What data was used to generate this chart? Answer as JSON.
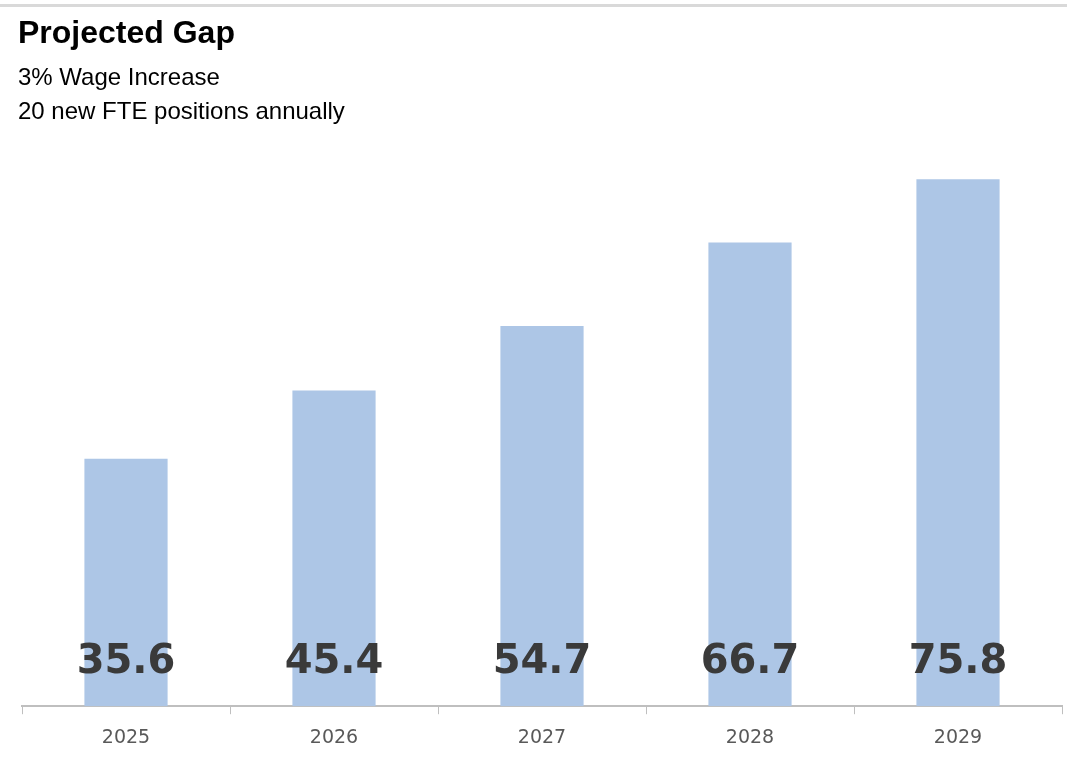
{
  "chart_data": {
    "type": "bar",
    "title": "Projected Gap",
    "subtitle": "3% Wage Increase\n20 new FTE positions annually",
    "categories": [
      "2025",
      "2026",
      "2027",
      "2028",
      "2029"
    ],
    "values": [
      35.6,
      45.4,
      54.7,
      66.7,
      75.8
    ],
    "color": "#adc6e6",
    "data_labels": true,
    "grid": false,
    "legend": false,
    "tick_labels": "x"
  }
}
